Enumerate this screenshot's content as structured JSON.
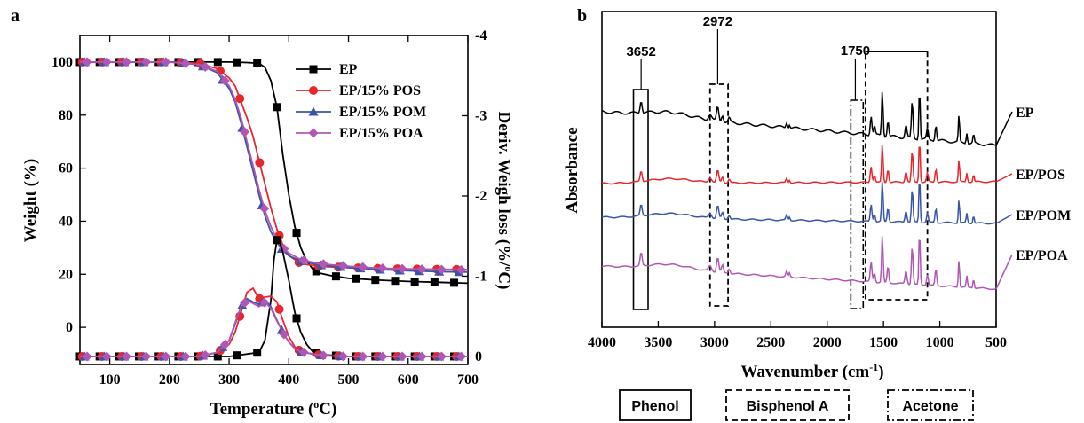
{
  "panels": {
    "a_label": "a",
    "b_label": "b"
  },
  "chart_data": [
    {
      "type": "line",
      "panel": "a",
      "xlabel": "Temperature (°C)",
      "ylabel": "Weight (%)",
      "y2label": "Deriv. Weigh loss (%/°C)",
      "xlim": [
        50,
        700
      ],
      "ylim": [
        -14,
        110
      ],
      "y2lim": [
        0.1,
        -4
      ],
      "xticks": [
        100,
        200,
        300,
        400,
        500,
        600,
        700
      ],
      "yticks": [
        0,
        20,
        40,
        60,
        80,
        100
      ],
      "y2ticks": [
        0,
        -1,
        -2,
        -3,
        -4
      ],
      "legend_position": "top-right",
      "grid": false,
      "colors": {
        "EP": "#000000",
        "EP/15% POS": "#e8262b",
        "EP/15% POM": "#3a55a8",
        "EP/15% POA": "#b057b5"
      },
      "markers": {
        "EP": "square",
        "EP/15% POS": "circle",
        "EP/15% POM": "triangle",
        "EP/15% POA": "diamond"
      },
      "weight_series": [
        {
          "name": "EP",
          "x": [
            50,
            100,
            150,
            200,
            250,
            300,
            330,
            350,
            360,
            370,
            380,
            390,
            400,
            410,
            420,
            430,
            440,
            450,
            470,
            500,
            550,
            600,
            650,
            700
          ],
          "y": [
            100,
            100,
            100,
            100,
            100,
            100,
            99.8,
            99.5,
            98,
            93,
            83,
            65,
            50,
            38,
            30,
            25,
            22,
            20.5,
            19.5,
            18.5,
            17.8,
            17.3,
            17,
            16.6
          ]
        },
        {
          "name": "EP/15% POS",
          "x": [
            50,
            100,
            150,
            200,
            250,
            280,
            300,
            310,
            320,
            330,
            340,
            350,
            360,
            370,
            380,
            390,
            400,
            420,
            450,
            500,
            550,
            600,
            650,
            700
          ],
          "y": [
            100,
            100,
            100,
            100,
            99.5,
            97.5,
            94,
            91,
            85,
            79,
            72,
            63,
            54,
            45,
            37,
            31,
            27,
            24,
            23,
            22.5,
            22.2,
            22,
            21.9,
            21.8
          ]
        },
        {
          "name": "EP/15% POM",
          "x": [
            50,
            100,
            150,
            200,
            250,
            280,
            300,
            310,
            320,
            330,
            340,
            350,
            360,
            370,
            380,
            390,
            400,
            420,
            450,
            500,
            550,
            600,
            650,
            700
          ],
          "y": [
            100,
            100,
            100,
            100,
            99,
            96,
            90,
            85,
            77,
            68,
            59,
            50,
            42,
            36,
            32,
            29,
            27,
            25,
            23.5,
            22.5,
            21.8,
            21.3,
            21,
            20.8
          ]
        },
        {
          "name": "EP/15% POA",
          "x": [
            50,
            100,
            150,
            200,
            250,
            280,
            300,
            310,
            320,
            330,
            340,
            350,
            360,
            370,
            380,
            390,
            400,
            420,
            450,
            500,
            550,
            600,
            650,
            700
          ],
          "y": [
            100,
            100,
            100,
            100,
            99,
            96.5,
            91,
            86,
            79,
            70,
            61,
            52,
            44,
            38,
            33,
            30,
            28,
            25.5,
            24,
            23,
            22.3,
            22,
            21.8,
            21.6
          ]
        }
      ],
      "dtg_series": [
        {
          "name": "EP",
          "x": [
            50,
            300,
            350,
            360,
            370,
            375,
            380,
            385,
            390,
            400,
            410,
            420,
            430,
            440,
            460,
            500,
            700
          ],
          "y": [
            0,
            0,
            -0.05,
            -0.2,
            -0.7,
            -1.2,
            -1.45,
            -1.42,
            -1.3,
            -0.95,
            -0.55,
            -0.3,
            -0.15,
            -0.06,
            -0.02,
            0,
            0
          ]
        },
        {
          "name": "EP/15% POS",
          "x": [
            50,
            250,
            280,
            300,
            310,
            320,
            330,
            340,
            350,
            360,
            370,
            380,
            390,
            400,
            410,
            420,
            440,
            460,
            500,
            700
          ],
          "y": [
            0,
            0,
            -0.05,
            -0.15,
            -0.3,
            -0.55,
            -0.8,
            -0.85,
            -0.72,
            -0.74,
            -0.75,
            -0.68,
            -0.45,
            -0.25,
            -0.12,
            -0.06,
            -0.03,
            -0.01,
            0,
            0
          ]
        },
        {
          "name": "EP/15% POM",
          "x": [
            50,
            250,
            280,
            300,
            310,
            320,
            330,
            340,
            350,
            360,
            370,
            380,
            390,
            400,
            410,
            420,
            440,
            460,
            500,
            700
          ],
          "y": [
            0,
            0,
            -0.05,
            -0.2,
            -0.4,
            -0.62,
            -0.72,
            -0.68,
            -0.65,
            -0.7,
            -0.62,
            -0.45,
            -0.3,
            -0.18,
            -0.1,
            -0.06,
            -0.03,
            -0.01,
            0,
            0
          ]
        },
        {
          "name": "EP/15% POA",
          "x": [
            50,
            250,
            280,
            300,
            310,
            320,
            330,
            340,
            350,
            360,
            370,
            380,
            390,
            400,
            410,
            420,
            440,
            460,
            500,
            700
          ],
          "y": [
            0,
            0,
            -0.05,
            -0.2,
            -0.42,
            -0.62,
            -0.7,
            -0.66,
            -0.62,
            -0.68,
            -0.6,
            -0.44,
            -0.3,
            -0.18,
            -0.1,
            -0.06,
            -0.03,
            -0.01,
            0,
            0
          ]
        }
      ]
    },
    {
      "type": "line",
      "panel": "b",
      "xlabel": "Wavenumber (cm⁻¹)",
      "ylabel": "Absorbance",
      "xlim": [
        4000,
        500
      ],
      "xticks": [
        4000,
        3500,
        3000,
        2500,
        2000,
        1500,
        1000,
        500
      ],
      "peak_labels": [
        "3652",
        "2972",
        "1750"
      ],
      "series_labels": [
        "EP",
        "EP/POS",
        "EP/POM",
        "EP/POA"
      ],
      "series_colors": [
        "#000000",
        "#e8262b",
        "#3a55a8",
        "#b057b5"
      ],
      "legend_boxes": [
        "Phenol",
        "Bisphenol A",
        "Acetone"
      ]
    }
  ]
}
